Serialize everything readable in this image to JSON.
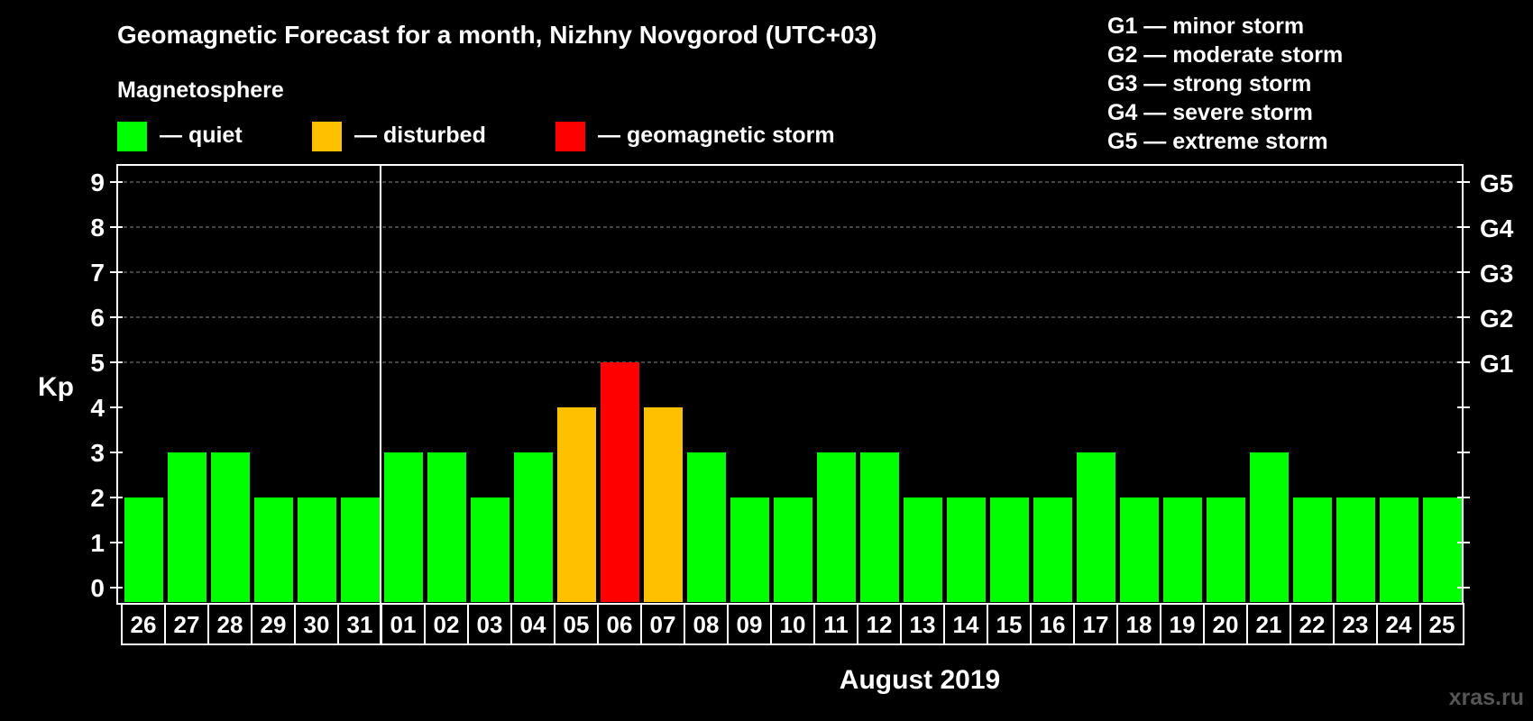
{
  "chart_data": {
    "type": "bar",
    "title": "Geomagnetic Forecast for a month, Nizhny Novgorod (UTC+03)",
    "subtitle": "Magnetosphere",
    "ylabel": "Kp",
    "xlabel": "August 2019",
    "ylim": [
      0,
      9
    ],
    "yticks": [
      "0",
      "1",
      "2",
      "3",
      "4",
      "5",
      "6",
      "7",
      "8",
      "9"
    ],
    "right_axis": [
      {
        "kp": 5,
        "label": "G1"
      },
      {
        "kp": 6,
        "label": "G2"
      },
      {
        "kp": 7,
        "label": "G3"
      },
      {
        "kp": 8,
        "label": "G4"
      },
      {
        "kp": 9,
        "label": "G5"
      }
    ],
    "grid": true,
    "month_divider_after_index": 5,
    "categories": [
      "26",
      "27",
      "28",
      "29",
      "30",
      "31",
      "01",
      "02",
      "03",
      "04",
      "05",
      "06",
      "07",
      "08",
      "09",
      "10",
      "11",
      "12",
      "13",
      "14",
      "15",
      "16",
      "17",
      "18",
      "19",
      "20",
      "21",
      "22",
      "23",
      "24",
      "25"
    ],
    "values": [
      2,
      3,
      3,
      2,
      2,
      2,
      3,
      3,
      2,
      3,
      4,
      5,
      4,
      3,
      2,
      2,
      3,
      3,
      2,
      2,
      2,
      2,
      3,
      2,
      2,
      2,
      3,
      2,
      2,
      2,
      2
    ],
    "status": [
      "quiet",
      "quiet",
      "quiet",
      "quiet",
      "quiet",
      "quiet",
      "quiet",
      "quiet",
      "quiet",
      "quiet",
      "disturbed",
      "storm",
      "disturbed",
      "quiet",
      "quiet",
      "quiet",
      "quiet",
      "quiet",
      "quiet",
      "quiet",
      "quiet",
      "quiet",
      "quiet",
      "quiet",
      "quiet",
      "quiet",
      "quiet",
      "quiet",
      "quiet",
      "quiet",
      "quiet"
    ],
    "status_legend": [
      {
        "key": "quiet",
        "label": "— quiet",
        "color": "#00ff00"
      },
      {
        "key": "disturbed",
        "label": "— disturbed",
        "color": "#ffc000"
      },
      {
        "key": "storm",
        "label": "— geomagnetic storm",
        "color": "#ff0000"
      }
    ],
    "storm_scale": [
      "G1 — minor storm",
      "G2 — moderate storm",
      "G3 — strong storm",
      "G4 — severe storm",
      "G5 — extreme storm"
    ]
  },
  "watermark": "xras.ru"
}
